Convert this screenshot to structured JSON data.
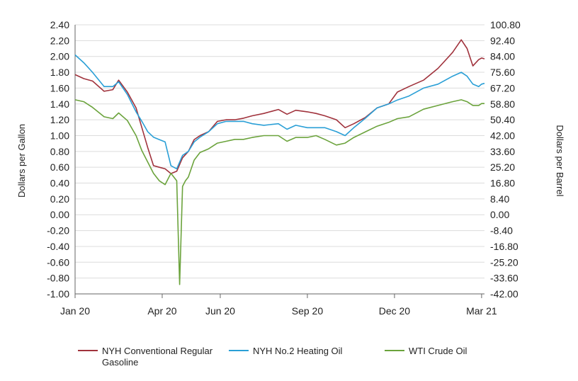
{
  "chart_data": {
    "type": "line",
    "title": "",
    "xlabel": "",
    "ylabel": "Dollars per Gallon",
    "y2label": "Dollars per Barrel",
    "ylim": [
      -1.0,
      2.4
    ],
    "y2lim": [
      -42.0,
      100.8
    ],
    "yticks": [
      "2.40",
      "2.20",
      "2.00",
      "1.80",
      "1.60",
      "1.40",
      "1.20",
      "1.00",
      "0.80",
      "0.60",
      "0.40",
      "0.20",
      "0.00",
      "-0.20",
      "-0.40",
      "-0.60",
      "-0.80",
      "-1.00"
    ],
    "y2ticks": [
      "100.80",
      "92.40",
      "84.00",
      "75.60",
      "67.20",
      "58.80",
      "50.40",
      "42.00",
      "33.60",
      "25.20",
      "16.80",
      "8.40",
      "0.00",
      "-8.40",
      "-16.80",
      "-25.20",
      "-33.60",
      "-42.00"
    ],
    "xticks": [
      "Jan 20",
      "Apr 20",
      "Jun 20",
      "Sep 20",
      "Dec 20",
      "Mar 21"
    ],
    "xlim": [
      0,
      14.1
    ],
    "xtick_values": [
      0,
      3,
      5,
      8,
      11,
      14
    ],
    "grid": true,
    "legend_position": "bottom",
    "series": [
      {
        "name": "NYH Conventional Regular Gasoline",
        "axis": "left",
        "color": "#a0323c",
        "x": [
          0,
          0.3,
          0.6,
          1.0,
          1.3,
          1.5,
          1.8,
          2.1,
          2.3,
          2.5,
          2.7,
          2.9,
          3.1,
          3.3,
          3.5,
          3.7,
          3.9,
          4.1,
          4.3,
          4.6,
          4.9,
          5.2,
          5.5,
          5.8,
          6.1,
          6.5,
          7.0,
          7.3,
          7.6,
          8.0,
          8.3,
          8.6,
          9.0,
          9.3,
          9.6,
          10.0,
          10.4,
          10.8,
          11.1,
          11.5,
          12.0,
          12.5,
          13.0,
          13.3,
          13.5,
          13.7,
          13.9,
          14.0,
          14.1
        ],
        "y": [
          1.77,
          1.72,
          1.69,
          1.56,
          1.58,
          1.7,
          1.55,
          1.35,
          1.1,
          0.85,
          0.62,
          0.6,
          0.58,
          0.52,
          0.55,
          0.72,
          0.8,
          0.95,
          1.0,
          1.05,
          1.18,
          1.2,
          1.2,
          1.22,
          1.25,
          1.28,
          1.33,
          1.27,
          1.32,
          1.3,
          1.28,
          1.25,
          1.2,
          1.1,
          1.15,
          1.23,
          1.35,
          1.4,
          1.55,
          1.62,
          1.7,
          1.85,
          2.05,
          2.21,
          2.1,
          1.88,
          1.96,
          1.98,
          1.97
        ]
      },
      {
        "name": "NYH No.2 Heating Oil",
        "axis": "left",
        "color": "#2a9fd6",
        "x": [
          0,
          0.3,
          0.6,
          1.0,
          1.3,
          1.5,
          1.8,
          2.1,
          2.3,
          2.5,
          2.7,
          2.9,
          3.1,
          3.3,
          3.5,
          3.7,
          3.9,
          4.1,
          4.3,
          4.6,
          4.9,
          5.2,
          5.5,
          5.8,
          6.1,
          6.5,
          7.0,
          7.3,
          7.6,
          8.0,
          8.3,
          8.6,
          9.0,
          9.3,
          9.6,
          10.0,
          10.4,
          10.8,
          11.1,
          11.5,
          12.0,
          12.5,
          13.0,
          13.3,
          13.5,
          13.7,
          13.9,
          14.0,
          14.1
        ],
        "y": [
          2.02,
          1.92,
          1.8,
          1.62,
          1.62,
          1.68,
          1.52,
          1.3,
          1.18,
          1.05,
          0.98,
          0.95,
          0.92,
          0.62,
          0.58,
          0.75,
          0.8,
          0.92,
          0.98,
          1.05,
          1.15,
          1.18,
          1.18,
          1.18,
          1.15,
          1.13,
          1.15,
          1.08,
          1.13,
          1.1,
          1.1,
          1.1,
          1.05,
          1.0,
          1.1,
          1.22,
          1.35,
          1.4,
          1.45,
          1.5,
          1.6,
          1.65,
          1.75,
          1.8,
          1.75,
          1.65,
          1.62,
          1.65,
          1.66
        ]
      },
      {
        "name": "WTI Crude Oil",
        "axis": "right",
        "color": "#6ba33c",
        "x": [
          0,
          0.3,
          0.6,
          1.0,
          1.3,
          1.5,
          1.8,
          2.1,
          2.3,
          2.5,
          2.7,
          2.9,
          3.1,
          3.3,
          3.5,
          3.6,
          3.7,
          3.8,
          3.9,
          4.1,
          4.3,
          4.6,
          4.9,
          5.2,
          5.5,
          5.8,
          6.1,
          6.5,
          7.0,
          7.3,
          7.6,
          8.0,
          8.3,
          8.6,
          9.0,
          9.3,
          9.6,
          10.0,
          10.4,
          10.8,
          11.1,
          11.5,
          12.0,
          12.5,
          13.0,
          13.3,
          13.5,
          13.7,
          13.9,
          14.0,
          14.1
        ],
        "y": [
          61,
          60,
          57,
          52,
          51,
          54,
          50,
          42,
          34,
          28,
          22,
          18,
          16,
          22,
          18,
          -37,
          15,
          18,
          20,
          29,
          33,
          35,
          38,
          39,
          40,
          40,
          41,
          42,
          42,
          39,
          41,
          41,
          42,
          40,
          37,
          38,
          41,
          44,
          47,
          49,
          51,
          52,
          56,
          58,
          60,
          61,
          60,
          58,
          58,
          59,
          59
        ]
      }
    ]
  }
}
